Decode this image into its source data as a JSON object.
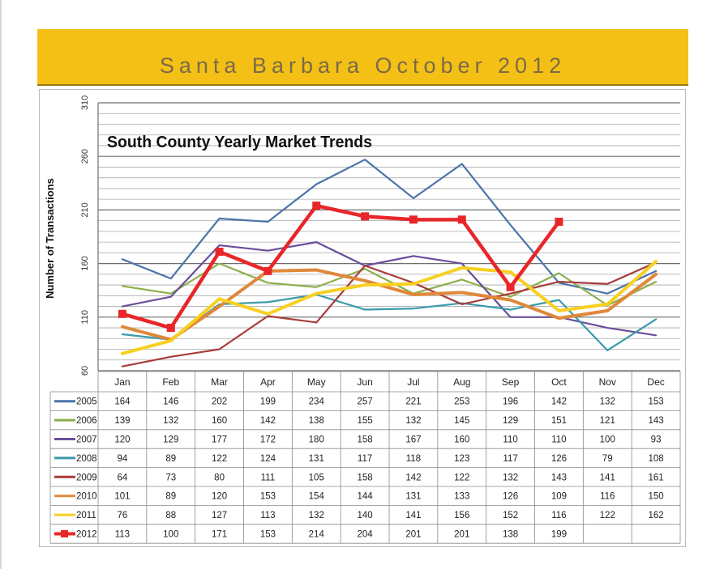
{
  "header": {
    "title": "Santa Barbara October 2012"
  },
  "chart_data": {
    "type": "line",
    "title": "South County Yearly Market Trends",
    "ylabel": "Number of Transactions",
    "ylim": [
      60,
      310
    ],
    "yticks": [
      60,
      110,
      160,
      210,
      260,
      310
    ],
    "grid": true,
    "legend": "data-table-below",
    "categories": [
      "Jan",
      "Feb",
      "Mar",
      "Apr",
      "May",
      "Jun",
      "Jul",
      "Aug",
      "Sep",
      "Oct",
      "Nov",
      "Dec"
    ],
    "series": [
      {
        "name": "2005",
        "color": "#4a74a8",
        "values": [
          164,
          146,
          202,
          199,
          234,
          257,
          221,
          253,
          196,
          142,
          132,
          153
        ]
      },
      {
        "name": "2006",
        "color": "#8caf4a",
        "values": [
          139,
          132,
          160,
          142,
          138,
          155,
          132,
          145,
          129,
          151,
          121,
          143
        ]
      },
      {
        "name": "2007",
        "color": "#6a4e9a",
        "values": [
          120,
          129,
          177,
          172,
          180,
          158,
          167,
          160,
          110,
          110,
          100,
          93
        ]
      },
      {
        "name": "2008",
        "color": "#3a9aaa",
        "values": [
          94,
          89,
          122,
          124,
          131,
          117,
          118,
          123,
          117,
          126,
          79,
          108
        ]
      },
      {
        "name": "2009",
        "color": "#a83c3c",
        "values": [
          64,
          73,
          80,
          111,
          105,
          158,
          142,
          122,
          132,
          143,
          141,
          161
        ]
      },
      {
        "name": "2010",
        "color": "#e0883a",
        "values": [
          101,
          89,
          120,
          153,
          154,
          144,
          131,
          133,
          126,
          109,
          116,
          150
        ]
      },
      {
        "name": "2011",
        "color": "#f7d020",
        "values": [
          76,
          88,
          127,
          113,
          132,
          140,
          141,
          156,
          152,
          116,
          122,
          162
        ]
      },
      {
        "name": "2012",
        "color": "#e8262a",
        "values": [
          113,
          100,
          171,
          153,
          214,
          204,
          201,
          201,
          138,
          199,
          null,
          null
        ]
      }
    ]
  }
}
